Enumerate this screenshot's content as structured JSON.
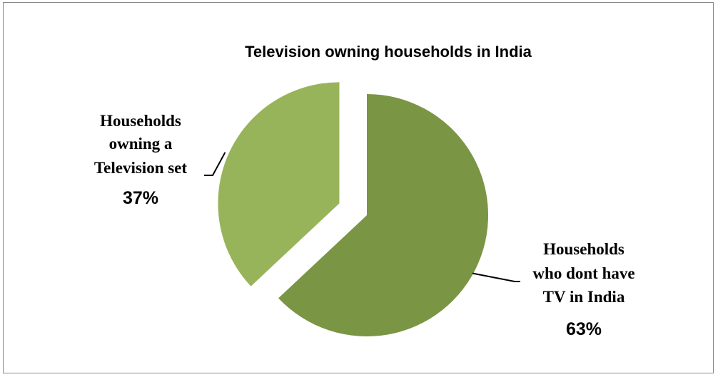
{
  "chart_data": {
    "type": "pie",
    "title": "Television owning households in India",
    "slices": [
      {
        "label_lines": [
          "Households",
          "who dont have",
          "TV in India"
        ],
        "percent_label": "63%",
        "value": 63,
        "color": "#7a9544",
        "exploded": false
      },
      {
        "label_lines": [
          "Households",
          "owning a",
          "Television set"
        ],
        "percent_label": "37%",
        "value": 37,
        "color": "#98b45a",
        "exploded": true
      }
    ],
    "legend": "none",
    "label_style": "outside-with-leader-lines"
  }
}
